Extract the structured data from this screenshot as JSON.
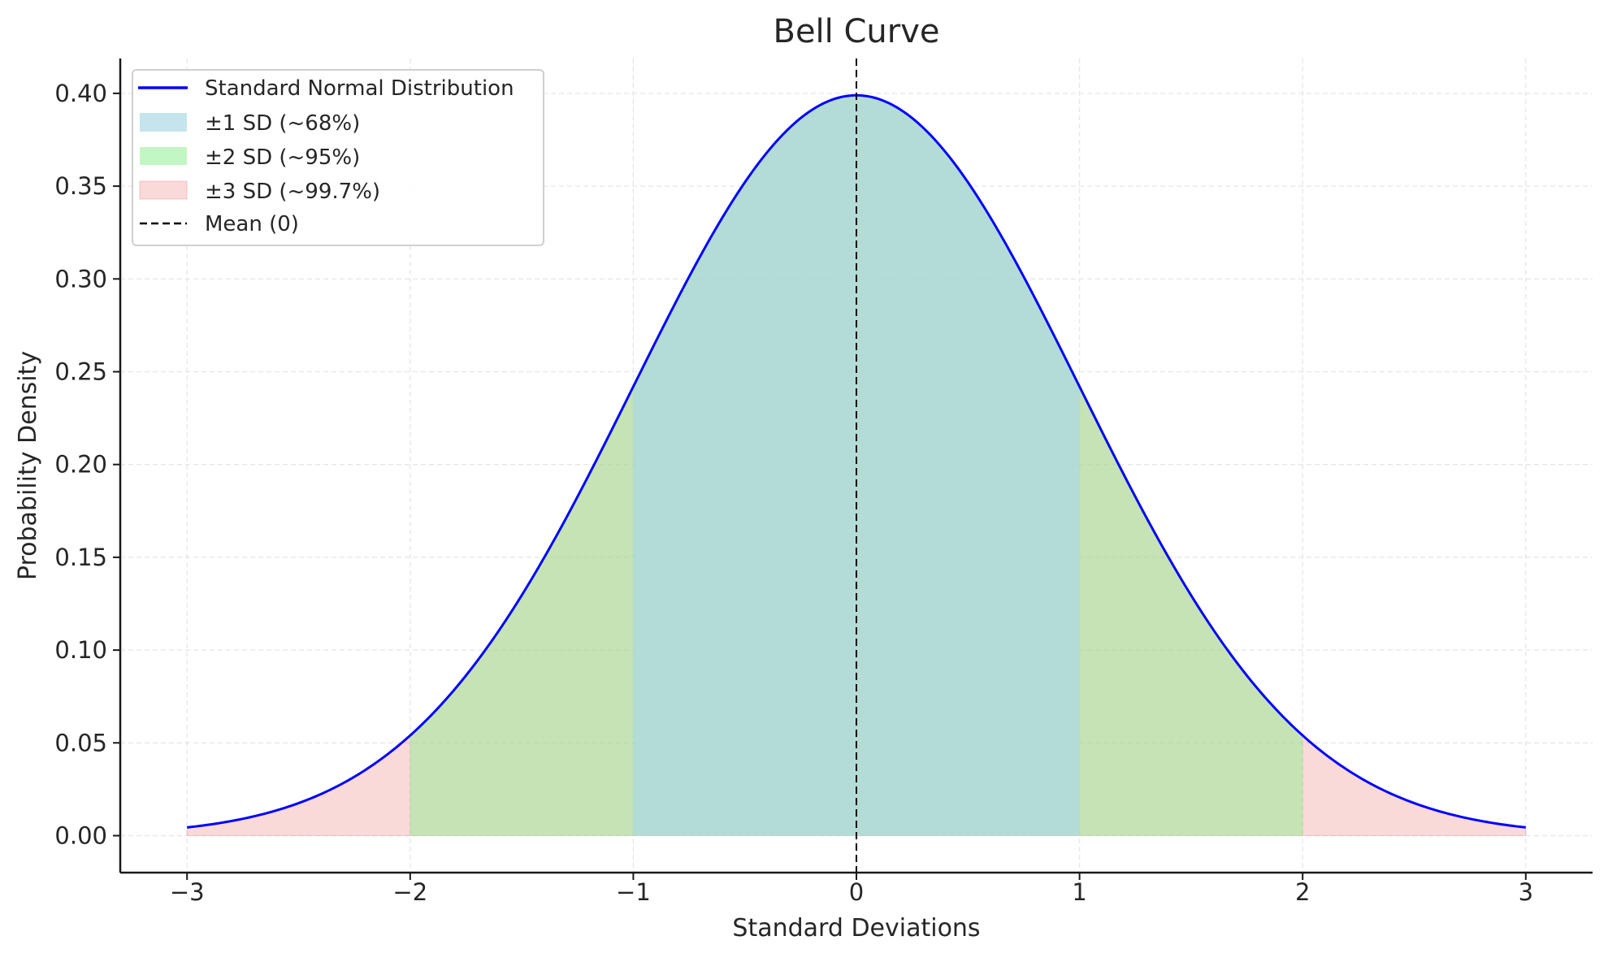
{
  "chart_data": {
    "type": "line",
    "title": "Bell Curve",
    "xlabel": "Standard Deviations",
    "ylabel": "Probability Density",
    "xlim": [
      -3.3,
      3.3
    ],
    "ylim": [
      -0.02,
      0.42
    ],
    "x_ticks": [
      -3,
      -2,
      -1,
      0,
      1,
      2,
      3
    ],
    "x_tick_labels": [
      "−3",
      "−2",
      "−1",
      "0",
      "1",
      "2",
      "3"
    ],
    "y_ticks": [
      0,
      0.05,
      0.1,
      0.15,
      0.2,
      0.25,
      0.3,
      0.35,
      0.4
    ],
    "y_tick_labels": [
      "0.00",
      "0.05",
      "0.10",
      "0.15",
      "0.20",
      "0.25",
      "0.30",
      "0.35",
      "0.40"
    ],
    "grid": true,
    "legend_position": "top-left",
    "series": [
      {
        "name": "Standard Normal Distribution",
        "kind": "line",
        "function": "normal pdf",
        "mean": 0,
        "sd": 1,
        "x_range": [
          -3,
          3
        ],
        "color": "#0000ff"
      }
    ],
    "bands": [
      {
        "name": "±1 SD (~68%)",
        "range": [
          -1,
          1
        ],
        "color": "#add8e6"
      },
      {
        "name": "±2 SD (~95%)",
        "range": [
          -2,
          2
        ],
        "color": "#90ee90"
      },
      {
        "name": "±3 SD (~99.7%)",
        "range": [
          -3,
          3
        ],
        "color": "#f08080"
      }
    ],
    "vlines": [
      {
        "name": "Mean (0)",
        "x": 0,
        "style": "dashed",
        "color": "#000000"
      }
    ]
  }
}
